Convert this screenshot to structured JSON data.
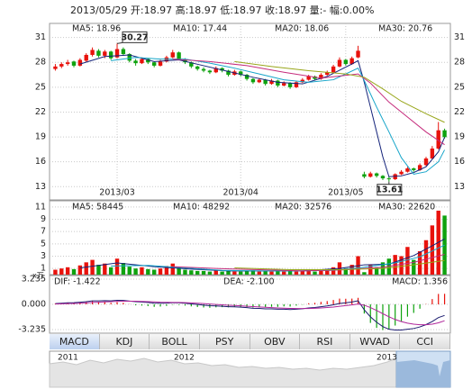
{
  "header": "2013/05/29 开:18.97 高:18.97 低:18.97 收:18.97 量:- 幅:0.00%",
  "tabs": [
    "MACD",
    "KDJ",
    "BOLL",
    "PSY",
    "OBV",
    "RSI",
    "WVAD",
    "CCI"
  ],
  "navigator": {
    "labels": [
      "2011",
      "2012",
      "2013"
    ]
  },
  "chart_data": [
    {
      "type": "candlestick",
      "categories": [
        null,
        null,
        null,
        null,
        null,
        null,
        null,
        null,
        null,
        null,
        "2013/03",
        null,
        null,
        null,
        null,
        null,
        null,
        null,
        null,
        null,
        null,
        null,
        null,
        null,
        null,
        null,
        null,
        null,
        null,
        null,
        "2013/04",
        null,
        null,
        null,
        null,
        null,
        null,
        null,
        null,
        null,
        null,
        null,
        null,
        null,
        null,
        null,
        null,
        "2013/05",
        null,
        null,
        null,
        null,
        null,
        null,
        null,
        null,
        null,
        null,
        null,
        null,
        null,
        null,
        null,
        null
      ],
      "open": [
        27.2,
        27.5,
        27.8,
        28.1,
        27.6,
        28.2,
        28.9,
        29.4,
        28.8,
        29.3,
        28.6,
        29.6,
        29.0,
        28.2,
        27.9,
        28.4,
        28.0,
        27.6,
        28.1,
        28.6,
        29.2,
        28.4,
        28.0,
        27.5,
        27.2,
        27.0,
        26.8,
        27.3,
        27.0,
        26.5,
        26.9,
        26.5,
        26.0,
        25.6,
        25.9,
        25.4,
        25.8,
        25.2,
        25.5,
        25.0,
        25.6,
        25.9,
        26.3,
        26.0,
        26.5,
        26.8,
        27.5,
        28.3,
        27.8,
        28.6,
        14.5,
        14.2,
        14.6,
        14.3,
        14.0,
        13.9,
        14.5,
        14.8,
        15.2,
        15.0,
        15.6,
        16.4,
        17.6,
        19.8
      ],
      "high": [
        27.8,
        28.0,
        28.3,
        28.2,
        28.5,
        29.1,
        29.8,
        29.6,
        29.5,
        29.4,
        30.27,
        29.8,
        29.1,
        28.4,
        28.6,
        28.5,
        28.1,
        28.3,
        28.8,
        29.5,
        29.3,
        28.5,
        28.1,
        27.6,
        27.4,
        27.1,
        27.5,
        27.4,
        27.1,
        27.1,
        27.0,
        26.6,
        26.1,
        26.1,
        26.0,
        26.0,
        25.9,
        25.7,
        25.6,
        25.8,
        26.1,
        26.5,
        26.4,
        26.7,
        27.0,
        27.7,
        28.6,
        28.4,
        28.7,
        30.0,
        14.8,
        14.8,
        14.7,
        14.4,
        14.2,
        14.6,
        15.0,
        15.4,
        15.3,
        15.8,
        16.6,
        17.9,
        20.8,
        20.0
      ],
      "low": [
        27.0,
        27.3,
        27.6,
        27.4,
        27.5,
        28.0,
        28.7,
        28.6,
        28.5,
        28.3,
        28.5,
        28.8,
        28.0,
        27.6,
        27.8,
        27.8,
        27.4,
        27.5,
        28.0,
        28.5,
        28.3,
        27.8,
        27.3,
        27.0,
        26.8,
        26.6,
        26.7,
        26.8,
        26.3,
        26.4,
        26.3,
        25.8,
        25.4,
        25.5,
        25.2,
        25.3,
        25.0,
        25.1,
        24.8,
        24.9,
        25.5,
        25.8,
        25.8,
        25.9,
        26.4,
        26.7,
        27.4,
        27.6,
        27.7,
        28.5,
        14.0,
        14.1,
        14.1,
        13.8,
        13.61,
        13.8,
        14.4,
        14.7,
        14.8,
        14.9,
        15.5,
        16.3,
        17.5,
        18.8
      ],
      "close": [
        27.5,
        27.8,
        28.0,
        27.6,
        28.3,
        28.9,
        29.5,
        28.8,
        29.3,
        28.5,
        29.6,
        29.0,
        28.2,
        27.9,
        28.4,
        28.0,
        27.6,
        28.1,
        28.6,
        29.2,
        28.4,
        28.0,
        27.5,
        27.2,
        27.0,
        26.8,
        27.3,
        27.0,
        26.5,
        26.9,
        26.5,
        26.0,
        25.6,
        25.9,
        25.4,
        25.8,
        25.2,
        25.5,
        25.0,
        25.6,
        25.9,
        26.3,
        26.0,
        26.5,
        26.8,
        27.5,
        28.3,
        27.8,
        28.5,
        29.4,
        14.2,
        14.6,
        14.3,
        14.0,
        13.9,
        14.5,
        14.8,
        15.2,
        15.0,
        15.6,
        16.4,
        17.6,
        19.8,
        18.97
      ],
      "up_color": "#e8120c",
      "down_color": "#0ea20e",
      "ylim": [
        11.4,
        32.7
      ],
      "yticks": [
        13,
        16,
        19,
        22,
        25,
        28,
        31
      ],
      "grid": true,
      "lines": [
        {
          "name": "MA5: 18.96",
          "color": "#14237a",
          "x": [
            4,
            8,
            12,
            16,
            20,
            24,
            28,
            32,
            36,
            40,
            44,
            48,
            49,
            50,
            51,
            52,
            53,
            54,
            56,
            58,
            60,
            62,
            63
          ],
          "values": [
            27.8,
            28.7,
            28.9,
            28.1,
            28.3,
            27.6,
            26.9,
            26.2,
            25.6,
            25.4,
            26.3,
            27.8,
            28.2,
            25.6,
            22.6,
            19.6,
            16.6,
            14.2,
            14.3,
            14.7,
            15.4,
            17.2,
            18.96
          ]
        },
        {
          "name": "MA10: 17.44",
          "color": "#16a5c9",
          "x": [
            9,
            13,
            17,
            21,
            25,
            29,
            33,
            37,
            41,
            45,
            49,
            50,
            52,
            54,
            56,
            58,
            60,
            62,
            63
          ],
          "values": [
            28.2,
            28.6,
            28.4,
            28.4,
            27.9,
            27.3,
            26.6,
            25.9,
            25.6,
            25.9,
            27.3,
            25.8,
            22.6,
            19.6,
            16.5,
            14.5,
            14.8,
            16.0,
            17.44
          ]
        },
        {
          "name": "MA20: 18.06",
          "color": "#c52c7c",
          "x": [
            19,
            25,
            31,
            37,
            43,
            49,
            51,
            54,
            57,
            60,
            63
          ],
          "values": [
            28.4,
            28.1,
            27.6,
            26.8,
            26.1,
            26.6,
            25.5,
            23.2,
            21.4,
            19.6,
            18.06
          ]
        },
        {
          "name": "MA30: 20.76",
          "color": "#98a61a",
          "x": [
            29,
            35,
            41,
            47,
            50,
            53,
            56,
            60,
            63
          ],
          "values": [
            28.1,
            27.5,
            27.0,
            26.6,
            26.2,
            24.8,
            23.3,
            21.8,
            20.76
          ]
        }
      ],
      "annotations": [
        {
          "label": "30.27",
          "index": 10,
          "value": 30.27
        },
        {
          "label": "13.61",
          "index": 54,
          "value": 13.61
        }
      ]
    },
    {
      "type": "bar",
      "unit": "x万",
      "values": [
        0.8,
        1.0,
        1.2,
        0.9,
        1.5,
        2.0,
        2.4,
        1.6,
        1.8,
        1.2,
        2.6,
        1.9,
        1.3,
        1.0,
        1.2,
        0.9,
        0.8,
        1.0,
        1.4,
        1.8,
        1.1,
        0.8,
        0.7,
        0.6,
        0.6,
        0.5,
        0.7,
        0.5,
        0.6,
        0.5,
        0.5,
        0.6,
        0.7,
        0.5,
        0.6,
        0.5,
        0.6,
        0.5,
        0.6,
        0.5,
        0.6,
        0.7,
        0.5,
        0.6,
        0.8,
        1.2,
        2.0,
        1.0,
        1.6,
        3.0,
        0.4,
        1.6,
        1.2,
        2.0,
        2.6,
        3.2,
        3.0,
        4.5,
        2.4,
        3.8,
        5.6,
        8.0,
        10.4,
        9.6
      ],
      "up_color": "#e8120c",
      "down_color": "#0ea20e",
      "ylim": [
        0,
        12
      ],
      "yticks": [
        1,
        3,
        5,
        7,
        9,
        11
      ],
      "grid": true,
      "lines": [
        {
          "name": "MA5: 58445",
          "color": "#14237a",
          "x": [
            4,
            10,
            16,
            22,
            28,
            34,
            40,
            46,
            50,
            54,
            58,
            61,
            63
          ],
          "values": [
            1.1,
            1.9,
            1.3,
            0.9,
            0.6,
            0.6,
            0.6,
            1.0,
            1.6,
            1.7,
            3.1,
            4.7,
            5.8
          ]
        },
        {
          "name": "MA10: 48292",
          "color": "#16a5c9",
          "x": [
            9,
            15,
            21,
            27,
            33,
            39,
            45,
            50,
            55,
            59,
            63
          ],
          "values": [
            1.4,
            1.5,
            1.1,
            0.7,
            0.6,
            0.6,
            0.7,
            1.2,
            1.9,
            2.9,
            4.8
          ]
        },
        {
          "name": "MA20: 32576",
          "color": "#c52c7c",
          "x": [
            19,
            26,
            33,
            40,
            47,
            53,
            58,
            63
          ],
          "values": [
            1.3,
            1.0,
            0.8,
            0.6,
            0.8,
            1.2,
            2.0,
            3.3
          ]
        },
        {
          "name": "MA30: 22620",
          "color": "#98a61a",
          "x": [
            29,
            38,
            46,
            53,
            58,
            63
          ],
          "values": [
            1.1,
            0.8,
            0.8,
            1.0,
            1.6,
            2.3
          ]
        }
      ]
    },
    {
      "type": "macd",
      "ylim": [
        -3.7,
        3.7
      ],
      "yticks": [
        3.235,
        {
          "value": 0,
          "label": "0.000"
        },
        -3.235
      ],
      "grid": true,
      "series": [
        {
          "name": "DIF: -1.422",
          "color": "#1b1b6e",
          "values": [
            0.1,
            0.15,
            0.2,
            0.22,
            0.28,
            0.35,
            0.45,
            0.45,
            0.48,
            0.45,
            0.52,
            0.5,
            0.42,
            0.34,
            0.3,
            0.24,
            0.16,
            0.14,
            0.16,
            0.22,
            0.2,
            0.14,
            0.06,
            -0.02,
            -0.1,
            -0.18,
            -0.2,
            -0.24,
            -0.3,
            -0.32,
            -0.36,
            -0.42,
            -0.5,
            -0.52,
            -0.58,
            -0.58,
            -0.62,
            -0.62,
            -0.66,
            -0.62,
            -0.56,
            -0.46,
            -0.4,
            -0.3,
            -0.2,
            -0.06,
            0.12,
            0.2,
            0.3,
            0.46,
            -0.7,
            -1.6,
            -2.3,
            -2.85,
            -3.2,
            -3.3,
            -3.3,
            -3.2,
            -3.1,
            -2.9,
            -2.6,
            -2.2,
            -1.7,
            -1.422
          ]
        },
        {
          "name": "DEA: -2.100",
          "color": "#b0259a",
          "values": [
            0.05,
            0.07,
            0.1,
            0.12,
            0.15,
            0.19,
            0.24,
            0.28,
            0.32,
            0.35,
            0.38,
            0.4,
            0.41,
            0.4,
            0.38,
            0.35,
            0.32,
            0.28,
            0.26,
            0.25,
            0.24,
            0.22,
            0.19,
            0.15,
            0.1,
            0.04,
            -0.01,
            -0.06,
            -0.11,
            -0.15,
            -0.19,
            -0.24,
            -0.29,
            -0.33,
            -0.38,
            -0.42,
            -0.46,
            -0.49,
            -0.52,
            -0.54,
            -0.54,
            -0.53,
            -0.5,
            -0.46,
            -0.41,
            -0.34,
            -0.25,
            -0.16,
            -0.07,
            0.04,
            -0.11,
            -0.41,
            -0.79,
            -1.2,
            -1.6,
            -1.94,
            -2.21,
            -2.41,
            -2.55,
            -2.62,
            -2.62,
            -2.54,
            -2.37,
            -2.1
          ]
        }
      ],
      "bars": {
        "name": "MACD: 1.356",
        "up_color": "#e8120c",
        "down_color": "#0ea20e",
        "values": [
          0.1,
          0.16,
          0.2,
          0.2,
          0.26,
          0.32,
          0.42,
          0.34,
          0.32,
          0.2,
          0.28,
          0.2,
          0.02,
          -0.12,
          -0.16,
          -0.22,
          -0.32,
          -0.28,
          -0.2,
          -0.06,
          -0.08,
          -0.16,
          -0.26,
          -0.34,
          -0.4,
          -0.44,
          -0.38,
          -0.36,
          -0.38,
          -0.34,
          -0.34,
          -0.36,
          -0.42,
          -0.38,
          -0.4,
          -0.32,
          -0.32,
          -0.26,
          -0.28,
          -0.16,
          -0.04,
          0.14,
          0.2,
          0.32,
          0.42,
          0.56,
          0.74,
          0.72,
          0.74,
          0.84,
          -1.18,
          -2.38,
          -3.02,
          -3.3,
          -3.2,
          -2.72,
          -2.18,
          -1.58,
          -1.1,
          -0.56,
          0.04,
          0.68,
          1.34,
          1.356
        ]
      }
    }
  ]
}
